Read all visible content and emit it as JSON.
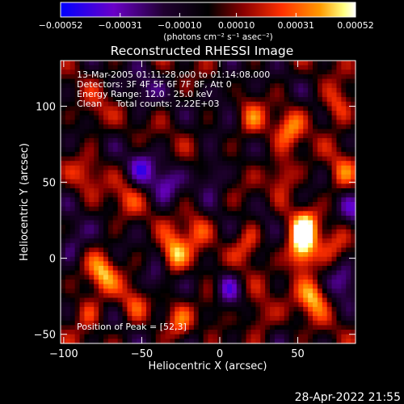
{
  "chart_data": {
    "type": "heatmap",
    "title": "Reconstructed RHESSI Image",
    "xlabel": "Heliocentric X (arcsec)",
    "ylabel": "Heliocentric Y (arcsec)",
    "xlim": [
      -102,
      87
    ],
    "ylim": [
      -56,
      130
    ],
    "xticks": [
      -100,
      -50,
      0,
      50
    ],
    "yticks": [
      -50,
      0,
      50,
      100
    ],
    "colorbar": {
      "min": -0.00052,
      "max": 0.00052,
      "ticks": [
        -0.00052,
        -0.00031,
        -0.0001,
        0.0001,
        0.00031,
        0.00052
      ],
      "tick_labels": [
        "-0.00052",
        "-0.00031",
        "-0.00010",
        "0.00010",
        "0.00031",
        "0.00052"
      ],
      "unit_label": "(photons cm⁻² s⁻¹ asec⁻²)",
      "colors": [
        "#0000ff",
        "#6a00c8",
        "#1a0030",
        "#000000",
        "#8a0000",
        "#ff3000",
        "#ff9a00",
        "#ffff80",
        "#ffffff"
      ]
    },
    "annotations": [
      "13-Mar-2005 01:11:28.000 to 01:14:08.000",
      "Detectors: 3F 4F 5F 6F 7F 8F, Att 0",
      "Energy Range: 12.0 - 25.0 keV",
      "Clean     Total counts: 2.22E+03"
    ],
    "peak_label": "Position of Peak = [52,3]",
    "peak": [
      52,
      3
    ],
    "sources": [
      {
        "x": 52,
        "y": 3,
        "amp": 1.0
      },
      {
        "x": 55,
        "y": 20,
        "amp": 0.85
      },
      {
        "x": 60,
        "y": -25,
        "amp": 0.8
      },
      {
        "x": 40,
        "y": 55,
        "amp": 0.6
      },
      {
        "x": 45,
        "y": 85,
        "amp": 0.55
      },
      {
        "x": 75,
        "y": 100,
        "amp": 0.6
      },
      {
        "x": 78,
        "y": 55,
        "amp": 0.45
      },
      {
        "x": 20,
        "y": 90,
        "amp": 0.45
      },
      {
        "x": 18,
        "y": 10,
        "amp": 0.55
      },
      {
        "x": 25,
        "y": -40,
        "amp": 0.45
      },
      {
        "x": -15,
        "y": 20,
        "amp": 0.45
      },
      {
        "x": -30,
        "y": 0,
        "amp": 0.55
      },
      {
        "x": -25,
        "y": -45,
        "amp": 0.45
      },
      {
        "x": -75,
        "y": -10,
        "amp": 0.7
      },
      {
        "x": -85,
        "y": -35,
        "amp": 0.45
      },
      {
        "x": -55,
        "y": -30,
        "amp": 0.4
      },
      {
        "x": -60,
        "y": 40,
        "amp": 0.35
      },
      {
        "x": -85,
        "y": 55,
        "amp": 0.35
      },
      {
        "x": -5,
        "y": -30,
        "amp": 0.35
      },
      {
        "x": 75,
        "y": 10,
        "amp": 0.3
      },
      {
        "x": -30,
        "y": 5,
        "amp": 0.35
      },
      {
        "x": -80,
        "y": 95,
        "amp": 0.3
      },
      {
        "x": -50,
        "y": 60,
        "amp": -0.5
      },
      {
        "x": -35,
        "y": 50,
        "amp": -0.5
      },
      {
        "x": -5,
        "y": 55,
        "amp": -0.55
      },
      {
        "x": -95,
        "y": 10,
        "amp": -0.5
      },
      {
        "x": -40,
        "y": -15,
        "amp": -0.45
      },
      {
        "x": 5,
        "y": -20,
        "amp": -0.55
      },
      {
        "x": 80,
        "y": -15,
        "amp": -0.55
      },
      {
        "x": 85,
        "y": 30,
        "amp": -0.4
      },
      {
        "x": -15,
        "y": -55,
        "amp": -0.4
      },
      {
        "x": 5,
        "y": 110,
        "amp": -0.4
      },
      {
        "x": -50,
        "y": 110,
        "amp": -0.4
      },
      {
        "x": 30,
        "y": 30,
        "amp": -0.3
      }
    ]
  },
  "footer_timestamp": "28-Apr-2022 21:55"
}
